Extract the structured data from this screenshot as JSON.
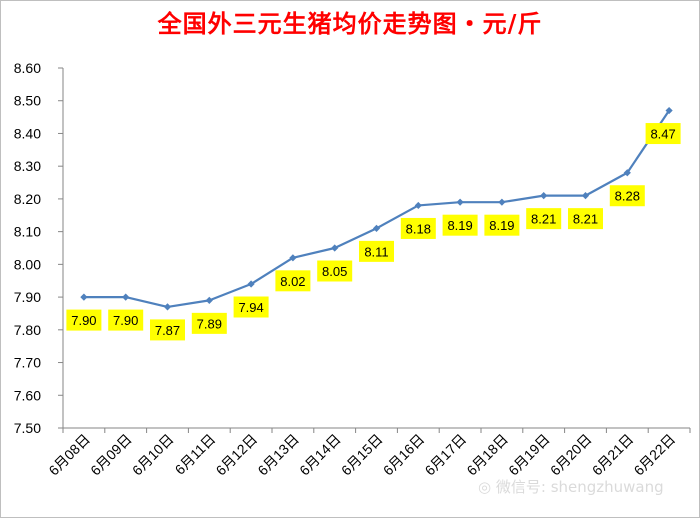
{
  "chart_data": {
    "type": "line",
    "title": "全国外三元生猪均价走势图・元/斤",
    "categories": [
      "6月08日",
      "6月09日",
      "6月10日",
      "6月11日",
      "6月12日",
      "6月13日",
      "6月14日",
      "6月15日",
      "6月16日",
      "6月17日",
      "6月18日",
      "6月19日",
      "6月20日",
      "6月21日",
      "6月22日"
    ],
    "values": [
      7.9,
      7.9,
      7.87,
      7.89,
      7.94,
      8.02,
      8.05,
      8.11,
      8.18,
      8.19,
      8.19,
      8.21,
      8.21,
      8.28,
      8.47
    ],
    "data_labels": [
      "7.90",
      "7.90",
      "7.87",
      "7.89",
      "7.94",
      "8.02",
      "8.05",
      "8.11",
      "8.18",
      "8.19",
      "8.19",
      "8.21",
      "8.21",
      "8.28",
      "8.47"
    ],
    "ylim": [
      7.5,
      8.6
    ],
    "yticks": [
      "7.50",
      "7.60",
      "7.70",
      "7.80",
      "7.90",
      "8.00",
      "8.10",
      "8.20",
      "8.30",
      "8.40",
      "8.50",
      "8.60"
    ],
    "grid": false,
    "legend": "none",
    "colors": {
      "line": "#4f81bd",
      "label_bg": "#ffff00",
      "title": "#ff0000"
    }
  },
  "watermark": "微信号: shengzhuwang",
  "watermark_icon": "wechat-icon"
}
